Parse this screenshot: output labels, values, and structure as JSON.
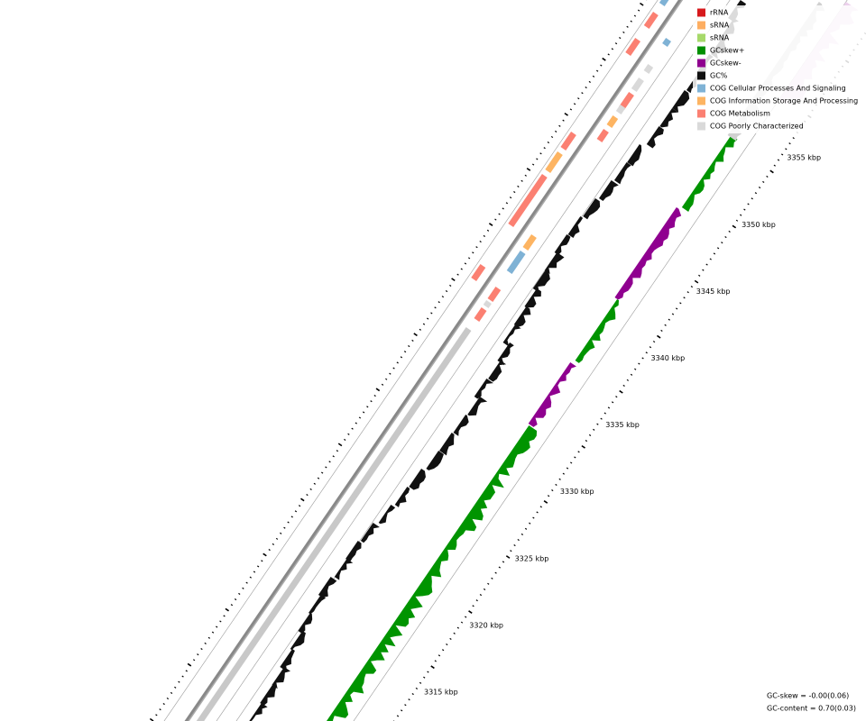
{
  "legend": {
    "items": [
      {
        "label": "rRNA",
        "color": "#d7191c"
      },
      {
        "label": "sRNA",
        "color": "#fdae61"
      },
      {
        "label": "sRNA",
        "color": "#a6d96a"
      },
      {
        "label": "GCskew+",
        "color": "#008f00"
      },
      {
        "label": "GCskew-",
        "color": "#8f008f"
      },
      {
        "label": "GC%",
        "color": "#111111"
      },
      {
        "label": "COG Cellular Processes And Signaling",
        "color": "#7fb2d5"
      },
      {
        "label": "COG Information Storage And Processing",
        "color": "#fdb462"
      },
      {
        "label": "COG Metabolism",
        "color": "#fb8072"
      },
      {
        "label": "COG Poorly Characterized",
        "color": "#d9d9d9"
      }
    ]
  },
  "ruler": {
    "labels": [
      "3315 kbp",
      "3320 kbp",
      "3325 kbp",
      "3330 kbp",
      "3335 kbp",
      "3340 kbp",
      "3345 kbp",
      "3350 kbp",
      "3355 kbp"
    ]
  },
  "stats": {
    "gc_skew": "GC-skew = -0.00(0.06)",
    "gc_content": "GC-content = 0.70(0.03)"
  }
}
